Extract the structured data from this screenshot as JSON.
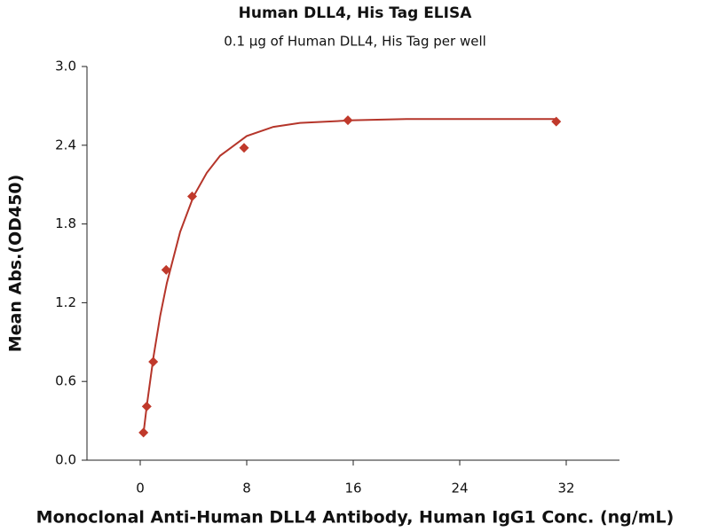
{
  "chart_data": {
    "type": "scatter",
    "title": "Human DLL4, His Tag ELISA",
    "subtitle": "0.1 μg of Human DLL4, His Tag per well",
    "x_label": "Monoclonal Anti-Human DLL4 Antibody, Human IgG1 Conc. (ng/mL)",
    "y_label": "Mean Abs.(OD450)",
    "xlim": [
      -4,
      36
    ],
    "xticks": [
      0,
      8,
      16,
      24,
      32
    ],
    "ylim": [
      0,
      3
    ],
    "yticks": [
      {
        "value": 0,
        "label": "0.0"
      },
      0.6,
      1.2,
      1.8,
      2.4,
      {
        "value": 3,
        "label": "3.0"
      }
    ],
    "series": [
      {
        "type": "scatter",
        "color": "#c0392b",
        "x": [
          0.244,
          0.488,
          0.977,
          1.95,
          3.9,
          7.8,
          15.6,
          31.25
        ],
        "values": [
          0.21,
          0.41,
          0.75,
          1.45,
          2.01,
          2.38,
          2.59,
          2.58
        ]
      },
      {
        "type": "line",
        "color": "#b5352a",
        "x": [
          0.24,
          0.5,
          1,
          1.5,
          2,
          3,
          4,
          5,
          6,
          8,
          10,
          12,
          16,
          20,
          24,
          31.25
        ],
        "values": [
          0.2,
          0.42,
          0.79,
          1.1,
          1.35,
          1.74,
          2.01,
          2.19,
          2.32,
          2.47,
          2.54,
          2.57,
          2.59,
          2.6,
          2.6,
          2.6
        ]
      }
    ]
  }
}
